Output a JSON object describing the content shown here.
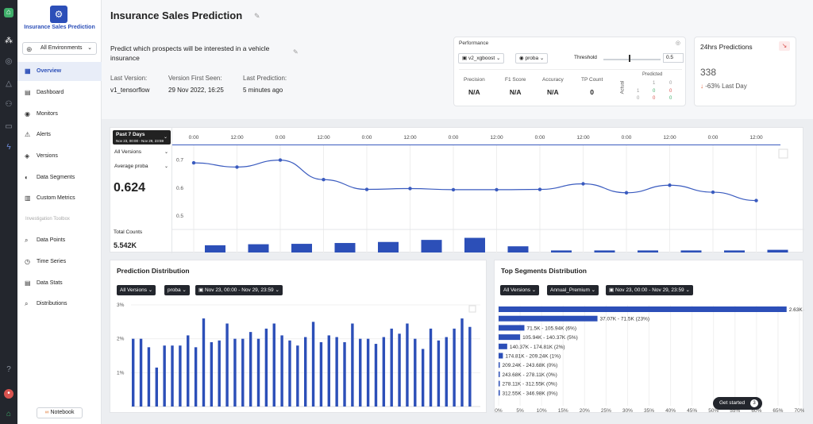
{
  "app": {
    "name": "Insurance Sales Prediction",
    "environment": "All Environments"
  },
  "nav": {
    "items": [
      {
        "label": "Overview",
        "icon": "grid-icon"
      },
      {
        "label": "Dashboard",
        "icon": "dashboard-icon"
      },
      {
        "label": "Monitors",
        "icon": "monitor-icon"
      },
      {
        "label": "Alerts",
        "icon": "alert-icon"
      },
      {
        "label": "Versions",
        "icon": "versions-icon"
      },
      {
        "label": "Data Segments",
        "icon": "segments-icon"
      },
      {
        "label": "Custom Metrics",
        "icon": "metrics-icon"
      }
    ],
    "section_label": "Investigation Toolbox",
    "toolbox": [
      {
        "label": "Data Points",
        "icon": "search-icon"
      },
      {
        "label": "Time Series",
        "icon": "clock-icon"
      },
      {
        "label": "Data Stats",
        "icon": "stats-icon"
      },
      {
        "label": "Distributions",
        "icon": "distribution-icon"
      }
    ],
    "notebook": "Notebook"
  },
  "header": {
    "title": "Insurance Sales Prediction",
    "description": "Predict which prospects will be interested in a vehicle insurance",
    "last_version_label": "Last Version:",
    "last_version": "v1_tensorflow",
    "first_seen_label": "Version First Seen:",
    "first_seen": "29 Nov 2022, 16:25",
    "last_prediction_label": "Last Prediction:",
    "last_prediction": "5 minutes ago"
  },
  "performance": {
    "title": "Performance",
    "version": "v2_xgboost",
    "metric": "proba",
    "threshold_label": "Threshold",
    "threshold": "0.5",
    "threshold_level": 0.5,
    "metrics": [
      {
        "label": "Precision",
        "value": "N/A"
      },
      {
        "label": "F1 Score",
        "value": "N/A"
      },
      {
        "label": "Accuracy",
        "value": "N/A"
      },
      {
        "label": "TP Count",
        "value": "0"
      }
    ],
    "confusion": {
      "predicted_label": "Predicted",
      "actual_label": "Actual",
      "col_heads": [
        "1",
        "0"
      ],
      "row_heads": [
        "1",
        "0"
      ],
      "cells": [
        "0",
        "0",
        "0",
        "0"
      ]
    }
  },
  "predictions24": {
    "title": "24hrs Predictions",
    "count": "338",
    "delta": "-63% Last Day"
  },
  "timeseries": {
    "range": "Past 7 Days",
    "range_sub": "Nov 23, 00:00 - Nov 29, 23:59",
    "version": "All Versions",
    "metric": "Average proba",
    "value": "0.624",
    "total_label": "Total Counts",
    "total": "5.542K",
    "ticks": [
      "0:00",
      "12:00",
      "0:00",
      "12:00",
      "0:00",
      "12:00",
      "0:00",
      "12:00",
      "0:00",
      "12:00",
      "0:00",
      "12:00",
      "0:00",
      "12:00"
    ]
  },
  "distribution": {
    "title": "Prediction Distribution",
    "version": "All Versions",
    "metric": "proba",
    "range": "Nov 23, 00:00 - Nov 29, 23:59"
  },
  "segments": {
    "title": "Top Segments Distribution",
    "version": "All Versions",
    "feature": "Annual_Premium",
    "range": "Nov 23, 00:00 - Nov 29, 23:59"
  },
  "get_started": {
    "label": "Get started",
    "count": "3"
  },
  "chart_data": [
    {
      "type": "line",
      "x": [
        0.5,
        1.5,
        2.5,
        3.5,
        4.5,
        5.5,
        6.5,
        7.5,
        8.5,
        9.5,
        10.5,
        11.5,
        12.5,
        13.5
      ],
      "values": [
        0.69,
        0.675,
        0.7,
        0.63,
        0.595,
        0.598,
        0.594,
        0.594,
        0.595,
        0.615,
        0.583,
        0.61,
        0.585,
        0.555
      ],
      "ylim": [
        0.48,
        0.75
      ],
      "yticks": [
        "0.7",
        "0.6",
        "0.5"
      ]
    },
    {
      "type": "bar",
      "values": [
        0.35,
        0.4,
        0.42,
        0.46,
        0.51,
        0.61,
        0.71,
        0.3,
        0.1,
        0.1,
        0.1,
        0.1,
        0.1,
        0.13,
        0.1,
        0.06
      ],
      "ylim": [
        0,
        1
      ]
    },
    {
      "type": "bar",
      "values": [
        2.0,
        2.0,
        1.75,
        1.15,
        1.8,
        1.8,
        1.8,
        2.1,
        1.75,
        2.6,
        1.9,
        1.95,
        2.45,
        2.0,
        2.0,
        2.2,
        2.0,
        2.3,
        2.45,
        2.1,
        1.95,
        1.8,
        2.05,
        2.5,
        1.9,
        2.1,
        2.05,
        1.9,
        2.45,
        2.0,
        2.0,
        1.85,
        2.05,
        2.3,
        2.15,
        2.45,
        2.0,
        1.7,
        2.3,
        1.95,
        2.05,
        2.3,
        2.6,
        2.35
      ],
      "ylim": [
        0,
        3
      ],
      "yticks": [
        "3%",
        "2%",
        "1%"
      ]
    },
    {
      "type": "bar",
      "orientation": "horizontal",
      "categories": [
        "2.63K - 37...",
        "37.07K - 71.5K (23%)",
        "71.5K - 105.94K (6%)",
        "105.94K - 140.37K (5%)",
        "140.37K - 174.81K (2%)",
        "174.81K - 209.24K (1%)",
        "209.24K - 243.68K (0%)",
        "243.68K - 278.11K (0%)",
        "278.11K - 312.55K (0%)",
        "312.55K - 346.98K (0%)"
      ],
      "values": [
        67,
        23,
        6,
        5,
        2,
        1,
        0,
        0,
        0,
        0
      ],
      "xticks": [
        "0%",
        "5%",
        "10%",
        "15%",
        "20%",
        "25%",
        "30%",
        "35%",
        "40%",
        "45%",
        "50%",
        "55%",
        "60%",
        "65%",
        "70%"
      ],
      "xlim": [
        0,
        70
      ]
    }
  ]
}
